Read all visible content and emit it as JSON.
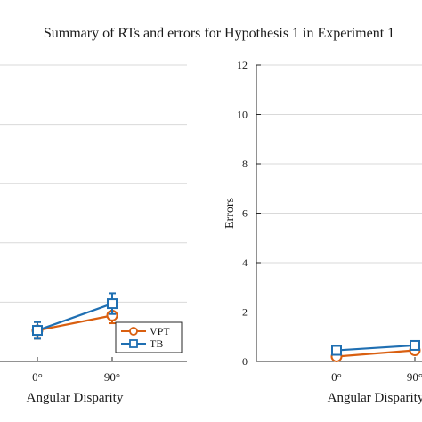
{
  "title": "Summary of RTs and errors for Hypothesis 1 in Experiment 1",
  "colors": {
    "VPT": "#d95f10",
    "TB": "#1f6fb2",
    "grid": "#d9d9d9",
    "axis": "#262626"
  },
  "chart_data": [
    {
      "type": "line",
      "xlabel": "Angular Disparity",
      "ylabel": "",
      "categories": [
        "0°",
        "90°"
      ],
      "ylim": [
        0,
        10
      ],
      "yticks": [],
      "grid": true,
      "legend": {
        "placement": "bottom-right",
        "entries": [
          "VPT",
          "TB"
        ]
      },
      "series": [
        {
          "name": "VPT",
          "values": [
            1.05,
            1.55
          ],
          "errors": [
            0.28,
            0.26
          ],
          "marker": "circle"
        },
        {
          "name": "TB",
          "values": [
            1.05,
            1.95
          ],
          "errors": [
            0.28,
            0.35
          ],
          "marker": "square"
        }
      ]
    },
    {
      "type": "line",
      "xlabel": "Angular Disparity",
      "ylabel": "Errors",
      "categories": [
        "0°",
        "90°"
      ],
      "ylim": [
        0,
        12
      ],
      "yticks": [
        "0",
        "2",
        "4",
        "6",
        "8",
        "10",
        "12"
      ],
      "grid": true,
      "series": [
        {
          "name": "VPT",
          "values": [
            0.2,
            0.45
          ],
          "errors": [
            0.1,
            0.1
          ],
          "marker": "circle"
        },
        {
          "name": "TB",
          "values": [
            0.45,
            0.65
          ],
          "errors": [
            0.1,
            0.1
          ],
          "marker": "square"
        }
      ]
    }
  ]
}
